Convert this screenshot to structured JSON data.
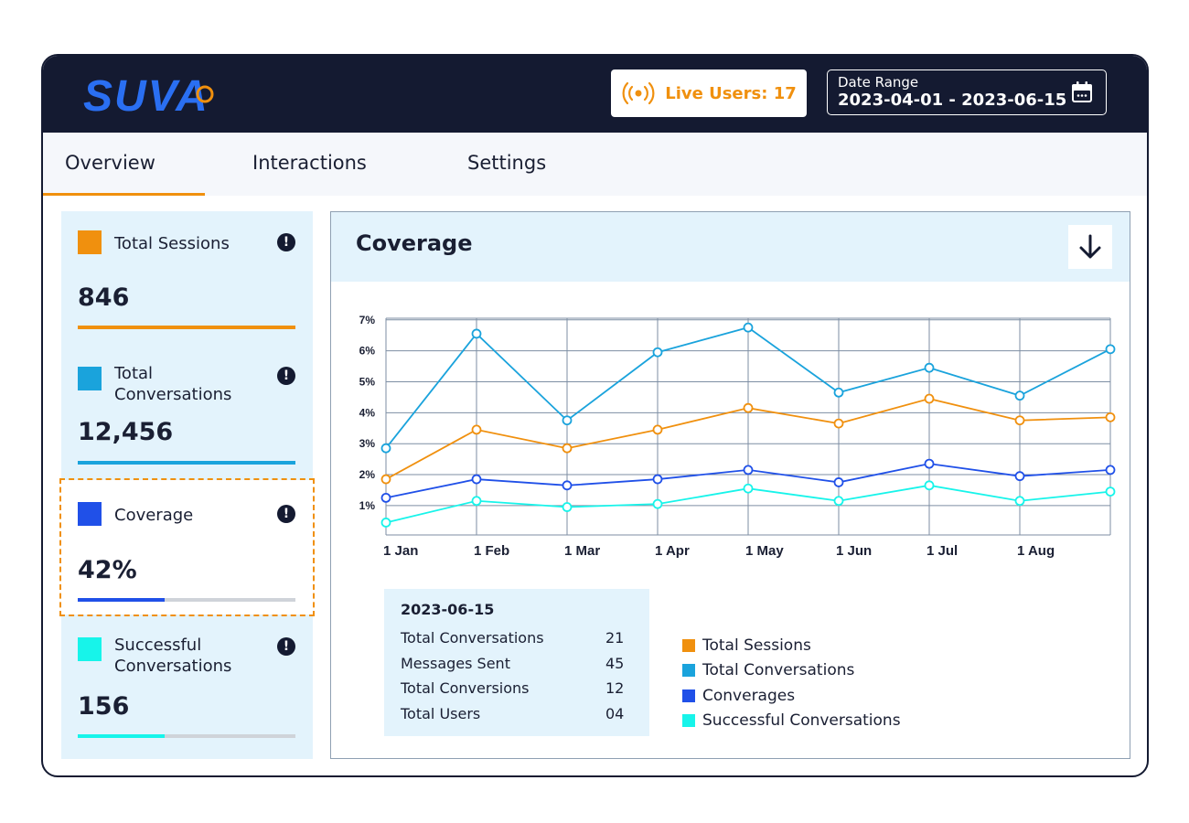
{
  "header": {
    "logo_text": "SUVA",
    "live_users_label": "Live Users: 17",
    "date_range_label": "Date Range",
    "date_range_value": "2023-04-01 - 2023-06-15"
  },
  "tabs": [
    {
      "label": "Overview",
      "active": true
    },
    {
      "label": "Interactions",
      "active": false
    },
    {
      "label": "Settings",
      "active": false
    }
  ],
  "metrics": [
    {
      "label": "Total Sessions",
      "value": "846",
      "color": "#f0900e",
      "progress": 1.0
    },
    {
      "label": "Total Conversations",
      "value": "12,456",
      "color": "#1aa3dc",
      "progress": 1.0
    },
    {
      "label": "Coverage",
      "value": "42%",
      "color": "#2050e8",
      "progress": 0.4,
      "selected": true
    },
    {
      "label": "Successful Conversations",
      "value": "156",
      "color": "#17f4ea",
      "progress": 0.4
    }
  ],
  "panel": {
    "title": "Coverage",
    "download_icon": "arrow-down-icon"
  },
  "tooltip": {
    "date": "2023-06-15",
    "rows": [
      {
        "label": "Total Conversations",
        "value": "21"
      },
      {
        "label": "Messages Sent",
        "value": "45"
      },
      {
        "label": "Total Conversions",
        "value": "12"
      },
      {
        "label": "Total Users",
        "value": "04"
      }
    ]
  },
  "chart_data": {
    "type": "line",
    "x": [
      "1 Jan",
      "1 Feb",
      "1 Mar",
      "1 Apr",
      "1 May",
      "1 Jun",
      "1 Jul",
      "1 Aug",
      ""
    ],
    "y_ticks": [
      "1%",
      "2%",
      "3%",
      "4%",
      "5%",
      "6%",
      "7%"
    ],
    "ylim": [
      0.2,
      7.2
    ],
    "grid": true,
    "legend_position": "bottom-right",
    "series": [
      {
        "name": "Total Sessions",
        "color": "#f0900e",
        "values": [
          2.0,
          3.6,
          3.0,
          3.6,
          4.3,
          3.8,
          4.6,
          3.9,
          4.0
        ]
      },
      {
        "name": "Total Conversations",
        "color": "#1aa3dc",
        "values": [
          3.0,
          6.7,
          3.9,
          6.1,
          6.9,
          4.8,
          5.6,
          4.7,
          6.2
        ]
      },
      {
        "name": "Converages",
        "color": "#2050e8",
        "values": [
          1.4,
          2.0,
          1.8,
          2.0,
          2.3,
          1.9,
          2.5,
          2.1,
          2.3
        ]
      },
      {
        "name": "Successful Conversations",
        "color": "#17f4ea",
        "values": [
          0.6,
          1.3,
          1.1,
          1.2,
          1.7,
          1.3,
          1.8,
          1.3,
          1.6
        ]
      }
    ]
  }
}
